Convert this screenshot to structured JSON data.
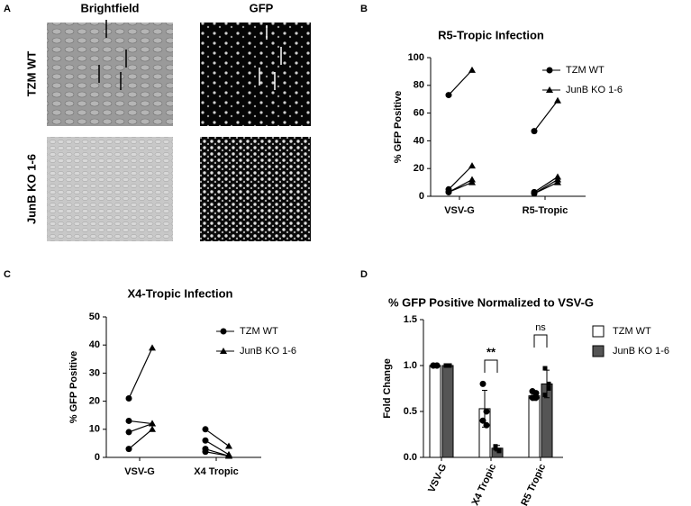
{
  "panel_a": {
    "letter": "A",
    "columns": [
      "Brightfield",
      "GFP"
    ],
    "rows": [
      "TZM WT",
      "JunB KO 1-6"
    ]
  },
  "chart_data": [
    {
      "type": "paired",
      "letter": "B",
      "title": "R5-Tropic Infection",
      "ylabel": "% GFP Positive",
      "categories": [
        "VSV-G",
        "R5-Tropic"
      ],
      "series": [
        {
          "name": "TZM WT",
          "marker": "circle",
          "color": "#000000",
          "values": [
            [
              73,
              5,
              3,
              3
            ],
            [
              47,
              3,
              2,
              2
            ]
          ]
        },
        {
          "name": "JunB KO 1-6",
          "marker": "triangle",
          "color": "#000000",
          "values": [
            [
              91,
              22,
              12,
              10
            ],
            [
              69,
              14,
              10,
              12
            ]
          ]
        }
      ],
      "ylim": [
        0,
        100
      ],
      "yticks": [
        0,
        20,
        40,
        60,
        80,
        100
      ]
    },
    {
      "type": "paired",
      "letter": "C",
      "title": "X4-Tropic Infection",
      "ylabel": "% GFP Positive",
      "categories": [
        "VSV-G",
        "X4 Tropic"
      ],
      "series": [
        {
          "name": "TZM WT",
          "marker": "circle",
          "color": "#000000",
          "values": [
            [
              21,
              13,
              9,
              3
            ],
            [
              10,
              6,
              3,
              2
            ]
          ]
        },
        {
          "name": "JunB KO 1-6",
          "marker": "triangle",
          "color": "#000000",
          "values": [
            [
              39,
              12,
              12,
              10
            ],
            [
              4,
              1,
              0.5,
              0.5
            ]
          ]
        }
      ],
      "ylim": [
        0,
        50
      ],
      "yticks": [
        0,
        10,
        20,
        30,
        40,
        50
      ]
    },
    {
      "type": "bar",
      "letter": "D",
      "title": "% GFP Positive Normalized to VSV-G",
      "ylabel": "Fold Change",
      "categories": [
        "VSV-G",
        "X4 Tropic",
        "R5 Tropic"
      ],
      "series": [
        {
          "name": "TZM WT",
          "color": "#ffffff",
          "marker": "circle",
          "values": [
            1.0,
            0.53,
            0.67
          ],
          "errors": [
            0,
            0.2,
            0.05
          ],
          "points": [
            [
              1,
              1,
              1,
              1
            ],
            [
              0.8,
              0.5,
              0.4,
              0.35
            ],
            [
              0.72,
              0.65,
              0.65,
              0.7
            ]
          ]
        },
        {
          "name": "JunB KO 1-6",
          "color": "#555555",
          "marker": "square",
          "values": [
            1.0,
            0.1,
            0.8
          ],
          "errors": [
            0,
            0.03,
            0.15
          ],
          "points": [
            [
              1,
              1,
              1,
              1
            ],
            [
              0.12,
              0.08,
              0.1,
              0.07
            ],
            [
              0.97,
              0.75,
              0.68,
              0.8
            ]
          ]
        }
      ],
      "annotations": [
        "**",
        "ns"
      ],
      "ylim": [
        0,
        1.5
      ],
      "yticks": [
        {
          "value": 0,
          "label": "0.0"
        },
        0.5,
        {
          "value": 1,
          "label": "1.0"
        },
        1.5
      ]
    }
  ]
}
